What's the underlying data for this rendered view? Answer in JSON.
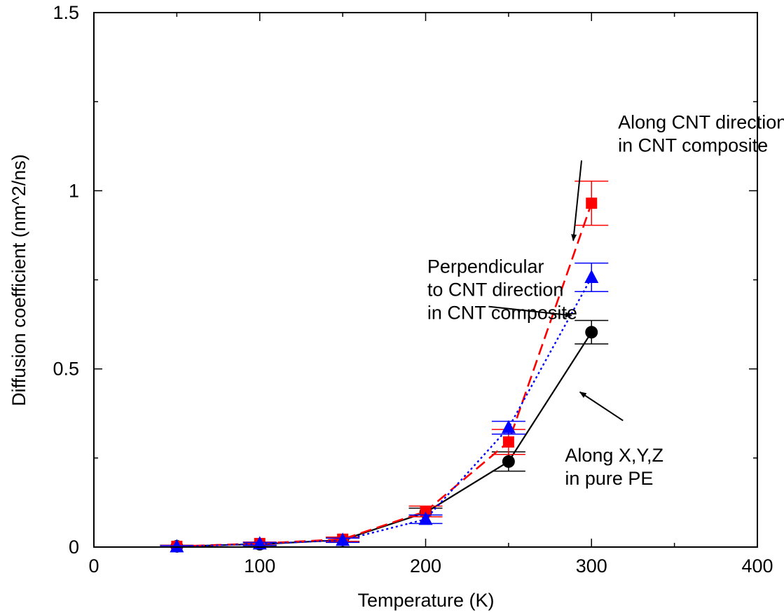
{
  "chart_data": {
    "type": "line",
    "title": "",
    "xlabel": "Temperature (K)",
    "ylabel": "Diffusion coefficient (nm^2/ns)",
    "xlim": [
      0,
      400
    ],
    "ylim": [
      0,
      1.5
    ],
    "xticks": [
      "0",
      "100",
      "200",
      "300",
      "400"
    ],
    "yticks": [
      "0",
      "0.5",
      "1",
      "1.5"
    ],
    "x_tick_values": [
      0,
      100,
      200,
      300,
      400
    ],
    "y_tick_values": [
      0,
      0.5,
      1,
      1.5
    ],
    "grid": false,
    "legend": "none",
    "series": [
      {
        "key": "pe",
        "color": "#000000",
        "line": "solid",
        "marker": "circle",
        "x": [
          50,
          100,
          150,
          200,
          250,
          300
        ],
        "y": [
          0.002,
          0.008,
          0.02,
          0.097,
          0.24,
          0.603
        ],
        "err": [
          0.003,
          0.004,
          0.006,
          0.012,
          0.027,
          0.033
        ]
      },
      {
        "key": "along_cnt",
        "color": "#ff0000",
        "line": "dashed",
        "marker": "square",
        "x": [
          50,
          100,
          150,
          200,
          250,
          300
        ],
        "y": [
          0.002,
          0.01,
          0.022,
          0.1,
          0.295,
          0.965
        ],
        "err": [
          0.003,
          0.004,
          0.006,
          0.015,
          0.035,
          0.062
        ]
      },
      {
        "key": "perp_cnt",
        "color": "#0000ff",
        "line": "dotted",
        "marker": "triangle",
        "x": [
          50,
          100,
          150,
          200,
          250,
          300
        ],
        "y": [
          0.001,
          0.009,
          0.019,
          0.078,
          0.335,
          0.757
        ],
        "err": [
          0.003,
          0.004,
          0.006,
          0.012,
          0.018,
          0.04
        ]
      }
    ],
    "annotations": [
      {
        "key": "along",
        "lines": [
          "Along CNT direction",
          "in CNT composite"
        ],
        "tx": 316,
        "ty": 1.175,
        "from": [
          294,
          1.085
        ],
        "to": [
          289,
          0.86
        ]
      },
      {
        "key": "perp",
        "lines": [
          "Perpendicular",
          "to CNT direction",
          "in CNT composite"
        ],
        "tx": 201,
        "ty": 0.77,
        "from": [
          238,
          0.675
        ],
        "to": [
          288,
          0.65
        ]
      },
      {
        "key": "pure",
        "lines": [
          "Along X,Y,Z",
          "in pure PE"
        ],
        "tx": 284,
        "ty": 0.24,
        "from": [
          319,
          0.355
        ],
        "to": [
          293,
          0.435
        ]
      }
    ]
  }
}
